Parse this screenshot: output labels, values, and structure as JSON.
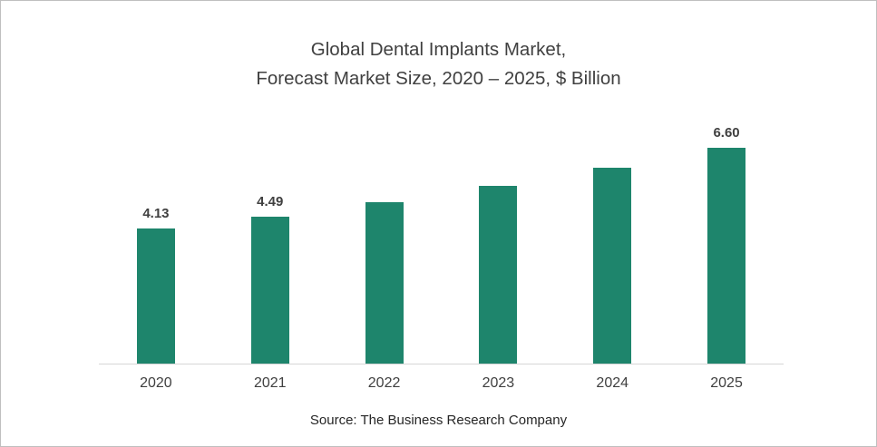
{
  "title": {
    "line1": "Global Dental Implants Market,",
    "line2": "Forecast Market Size, 2020 – 2025, $ Billion"
  },
  "source": "Source: The Business Research Company",
  "colors": {
    "bar": "#1E856C",
    "axis": "#D6D6D6",
    "title_text": "#404040",
    "label_text": "#404040"
  },
  "chart_data": {
    "type": "bar",
    "title": "Global Dental Implants Market, Forecast Market Size, 2020 – 2025, $ Billion",
    "categories": [
      "2020",
      "2021",
      "2022",
      "2023",
      "2024",
      "2025"
    ],
    "values": [
      4.13,
      4.49,
      4.94,
      5.44,
      5.99,
      6.6
    ],
    "data_labels": [
      "4.13",
      "4.49",
      "",
      "",
      "",
      "6.60"
    ],
    "xlabel": "",
    "ylabel": "$ Billion",
    "ylim": [
      0,
      7.5
    ],
    "grid": false,
    "legend": false,
    "bar_color": "#1E856C",
    "source": "Source: The Business Research Company"
  }
}
